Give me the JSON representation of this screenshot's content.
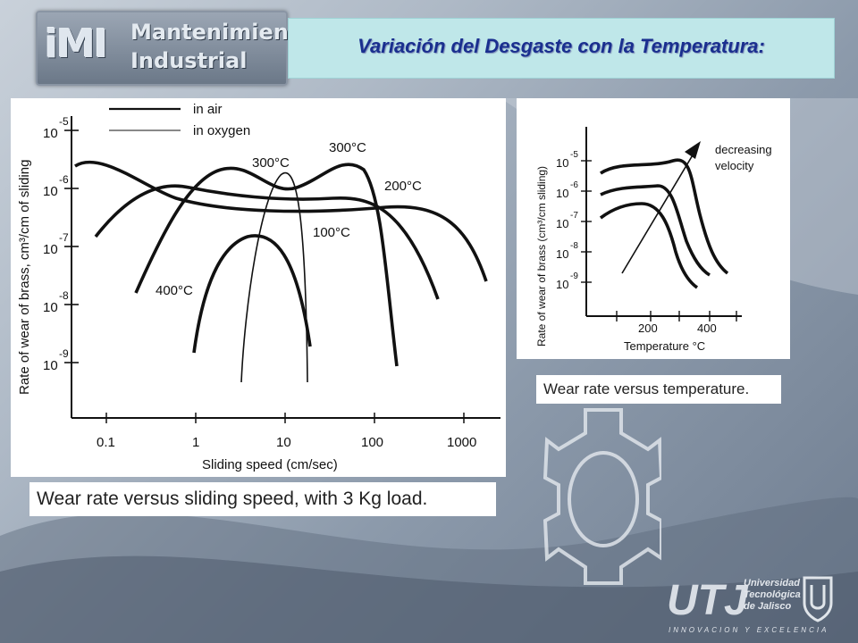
{
  "header": {
    "logo_imi": "iMI",
    "logo_line1": "Mantenimiento",
    "logo_line2": "Industrial",
    "title": "Variación del Desgaste con la Temperatura:"
  },
  "chart_data": [
    {
      "type": "line",
      "xlabel": "Sliding speed (cm/sec)",
      "ylabel": "Rate of wear of brass, cm³/cm of sliding",
      "xscale": "log",
      "yscale": "log",
      "x_ticks": [
        "0.1",
        "1",
        "10",
        "100",
        "1000"
      ],
      "y_ticks": [
        "10-5",
        "10-6",
        "10-7",
        "10-8",
        "10-9"
      ],
      "legend": [
        {
          "label": "in air",
          "style": "thick"
        },
        {
          "label": "in oxygen",
          "style": "thin"
        }
      ],
      "curve_labels": [
        "300°C",
        "300°C",
        "200°C",
        "100°C",
        "400°C"
      ],
      "caption": "Wear rate versus sliding speed, with 3 Kg load."
    },
    {
      "type": "line",
      "xlabel": "Temperature °C",
      "ylabel": "Rate of wear of brass (cm³/cm sliding)",
      "x_ticks": [
        "200",
        "400"
      ],
      "y_ticks": [
        "10-5",
        "10-6",
        "10-7",
        "10-8",
        "10-9"
      ],
      "annotation": "decreasing velocity",
      "caption": "Wear rate versus temperature."
    }
  ],
  "footer": {
    "logo_main": "UTJ",
    "logo_sub1": "Universidad",
    "logo_sub2": "Tecnológica",
    "logo_sub3": "de Jalisco",
    "tagline": "INNOVACION Y EXCELENCIA"
  },
  "colors": {
    "title_text": "#1a2f8f",
    "title_bg": "#bfe7e9"
  }
}
